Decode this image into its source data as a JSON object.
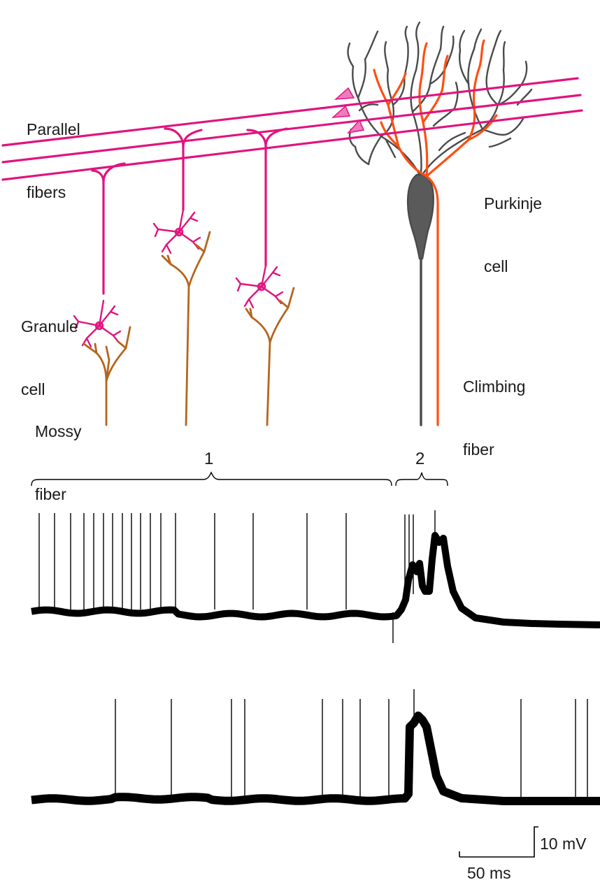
{
  "labels": {
    "parallel_fibers": [
      "Parallel",
      "fibers"
    ],
    "purkinje_cell": [
      "Purkinje",
      "cell"
    ],
    "granule_cell": [
      "Granule",
      "cell"
    ],
    "mossy_fiber": [
      "Mossy",
      "fiber"
    ],
    "climbing_fiber": [
      "Climbing",
      "fiber"
    ]
  },
  "recording": {
    "segment_1_label": "1",
    "segment_2_label": "2",
    "scale_bar_voltage": "10 mV",
    "scale_bar_time": "50 ms"
  },
  "colors": {
    "parallel_fiber": "#e0147e",
    "granule_cell": "#e0147e",
    "mossy_fiber": "#b5651d",
    "purkinje_cell": "#555555",
    "climbing_fiber": "#ff4f12",
    "trace": "#000000"
  }
}
